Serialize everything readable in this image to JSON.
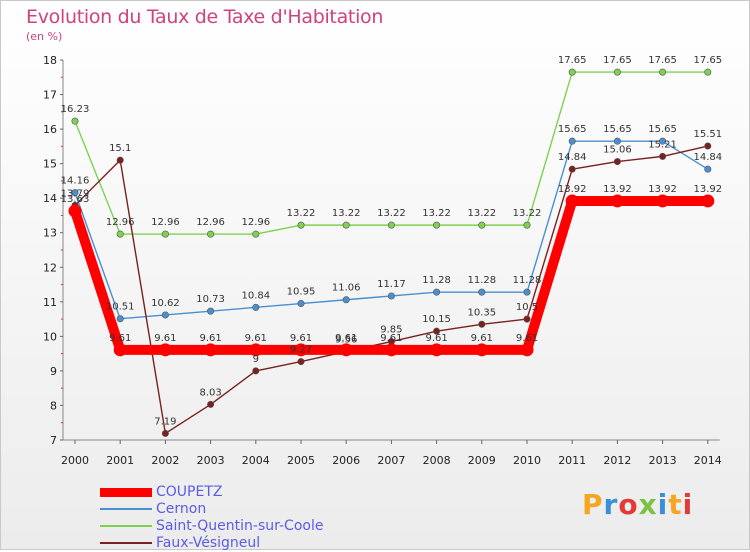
{
  "header": {
    "title": "Evolution du Taux de Taxe d'Habitation",
    "subtitle": "(en %)"
  },
  "logo": {
    "text": "Proxiti",
    "colors": [
      "#f5a623",
      "#3a8fd6",
      "#e53935",
      "#7cc242",
      "#3a8fd6",
      "#f5a623",
      "#e53935"
    ]
  },
  "chart_data": {
    "type": "line",
    "title": "Evolution du Taux de Taxe d'Habitation",
    "ylabel": "(en %)",
    "xlabel": "",
    "x": [
      "2000",
      "2001",
      "2002",
      "2003",
      "2004",
      "2005",
      "2006",
      "2007",
      "2008",
      "2009",
      "2010",
      "2011",
      "2012",
      "2013",
      "2014"
    ],
    "ylim": [
      7,
      18
    ],
    "yticks": [
      7,
      8,
      9,
      10,
      11,
      12,
      13,
      14,
      15,
      16,
      17,
      18
    ],
    "grid": false,
    "legend_position": "bottom-left",
    "series": [
      {
        "name": "COUPETZ",
        "color": "#ff0000",
        "values": [
          13.63,
          9.61,
          9.61,
          9.61,
          9.61,
          9.61,
          9.61,
          9.61,
          9.61,
          9.61,
          9.61,
          13.92,
          13.92,
          13.92,
          13.92
        ],
        "labels": [
          "13.63",
          "9.61",
          "9.61",
          "9.61",
          "9.61",
          "9.61",
          "9.61",
          "9.61",
          "9.61",
          "9.61",
          "9.61",
          "13.92",
          "13.92",
          "13.92",
          "13.92"
        ]
      },
      {
        "name": "Cernon",
        "color": "#4a90d0",
        "values": [
          14.16,
          10.51,
          10.62,
          10.73,
          10.84,
          10.95,
          11.06,
          11.17,
          11.28,
          11.28,
          11.28,
          15.65,
          15.65,
          15.65,
          14.84
        ],
        "labels": [
          "14.16",
          "10.51",
          "10.62",
          "10.73",
          "10.84",
          "10.95",
          "11.06",
          "11.17",
          "11.28",
          "11.28",
          "11.28",
          "15.65",
          "15.65",
          "15.65",
          "14.84"
        ]
      },
      {
        "name": "Saint-Quentin-sur-Coole",
        "color": "#7ed24f",
        "values": [
          16.23,
          12.96,
          12.96,
          12.96,
          12.96,
          13.22,
          13.22,
          13.22,
          13.22,
          13.22,
          13.22,
          17.65,
          17.65,
          17.65,
          17.65
        ],
        "labels": [
          "16.23",
          "12.96",
          "12.96",
          "12.96",
          "12.96",
          "13.22",
          "13.22",
          "13.22",
          "13.22",
          "13.22",
          "13.22",
          "17.65",
          "17.65",
          "17.65",
          "17.65"
        ]
      },
      {
        "name": "Faux-Vésigneul",
        "color": "#7a2020",
        "values": [
          13.79,
          15.1,
          7.19,
          8.03,
          9.0,
          9.27,
          9.56,
          9.85,
          10.15,
          10.35,
          10.5,
          14.84,
          15.06,
          15.21,
          15.51
        ],
        "labels": [
          "13.79",
          "15.1",
          "7.19",
          "8.03",
          "9",
          "9.27",
          "9.56",
          "9.85",
          "10.15",
          "10.35",
          "10.5",
          "14.84",
          "15.06",
          "15.21",
          "15.51"
        ]
      }
    ]
  }
}
